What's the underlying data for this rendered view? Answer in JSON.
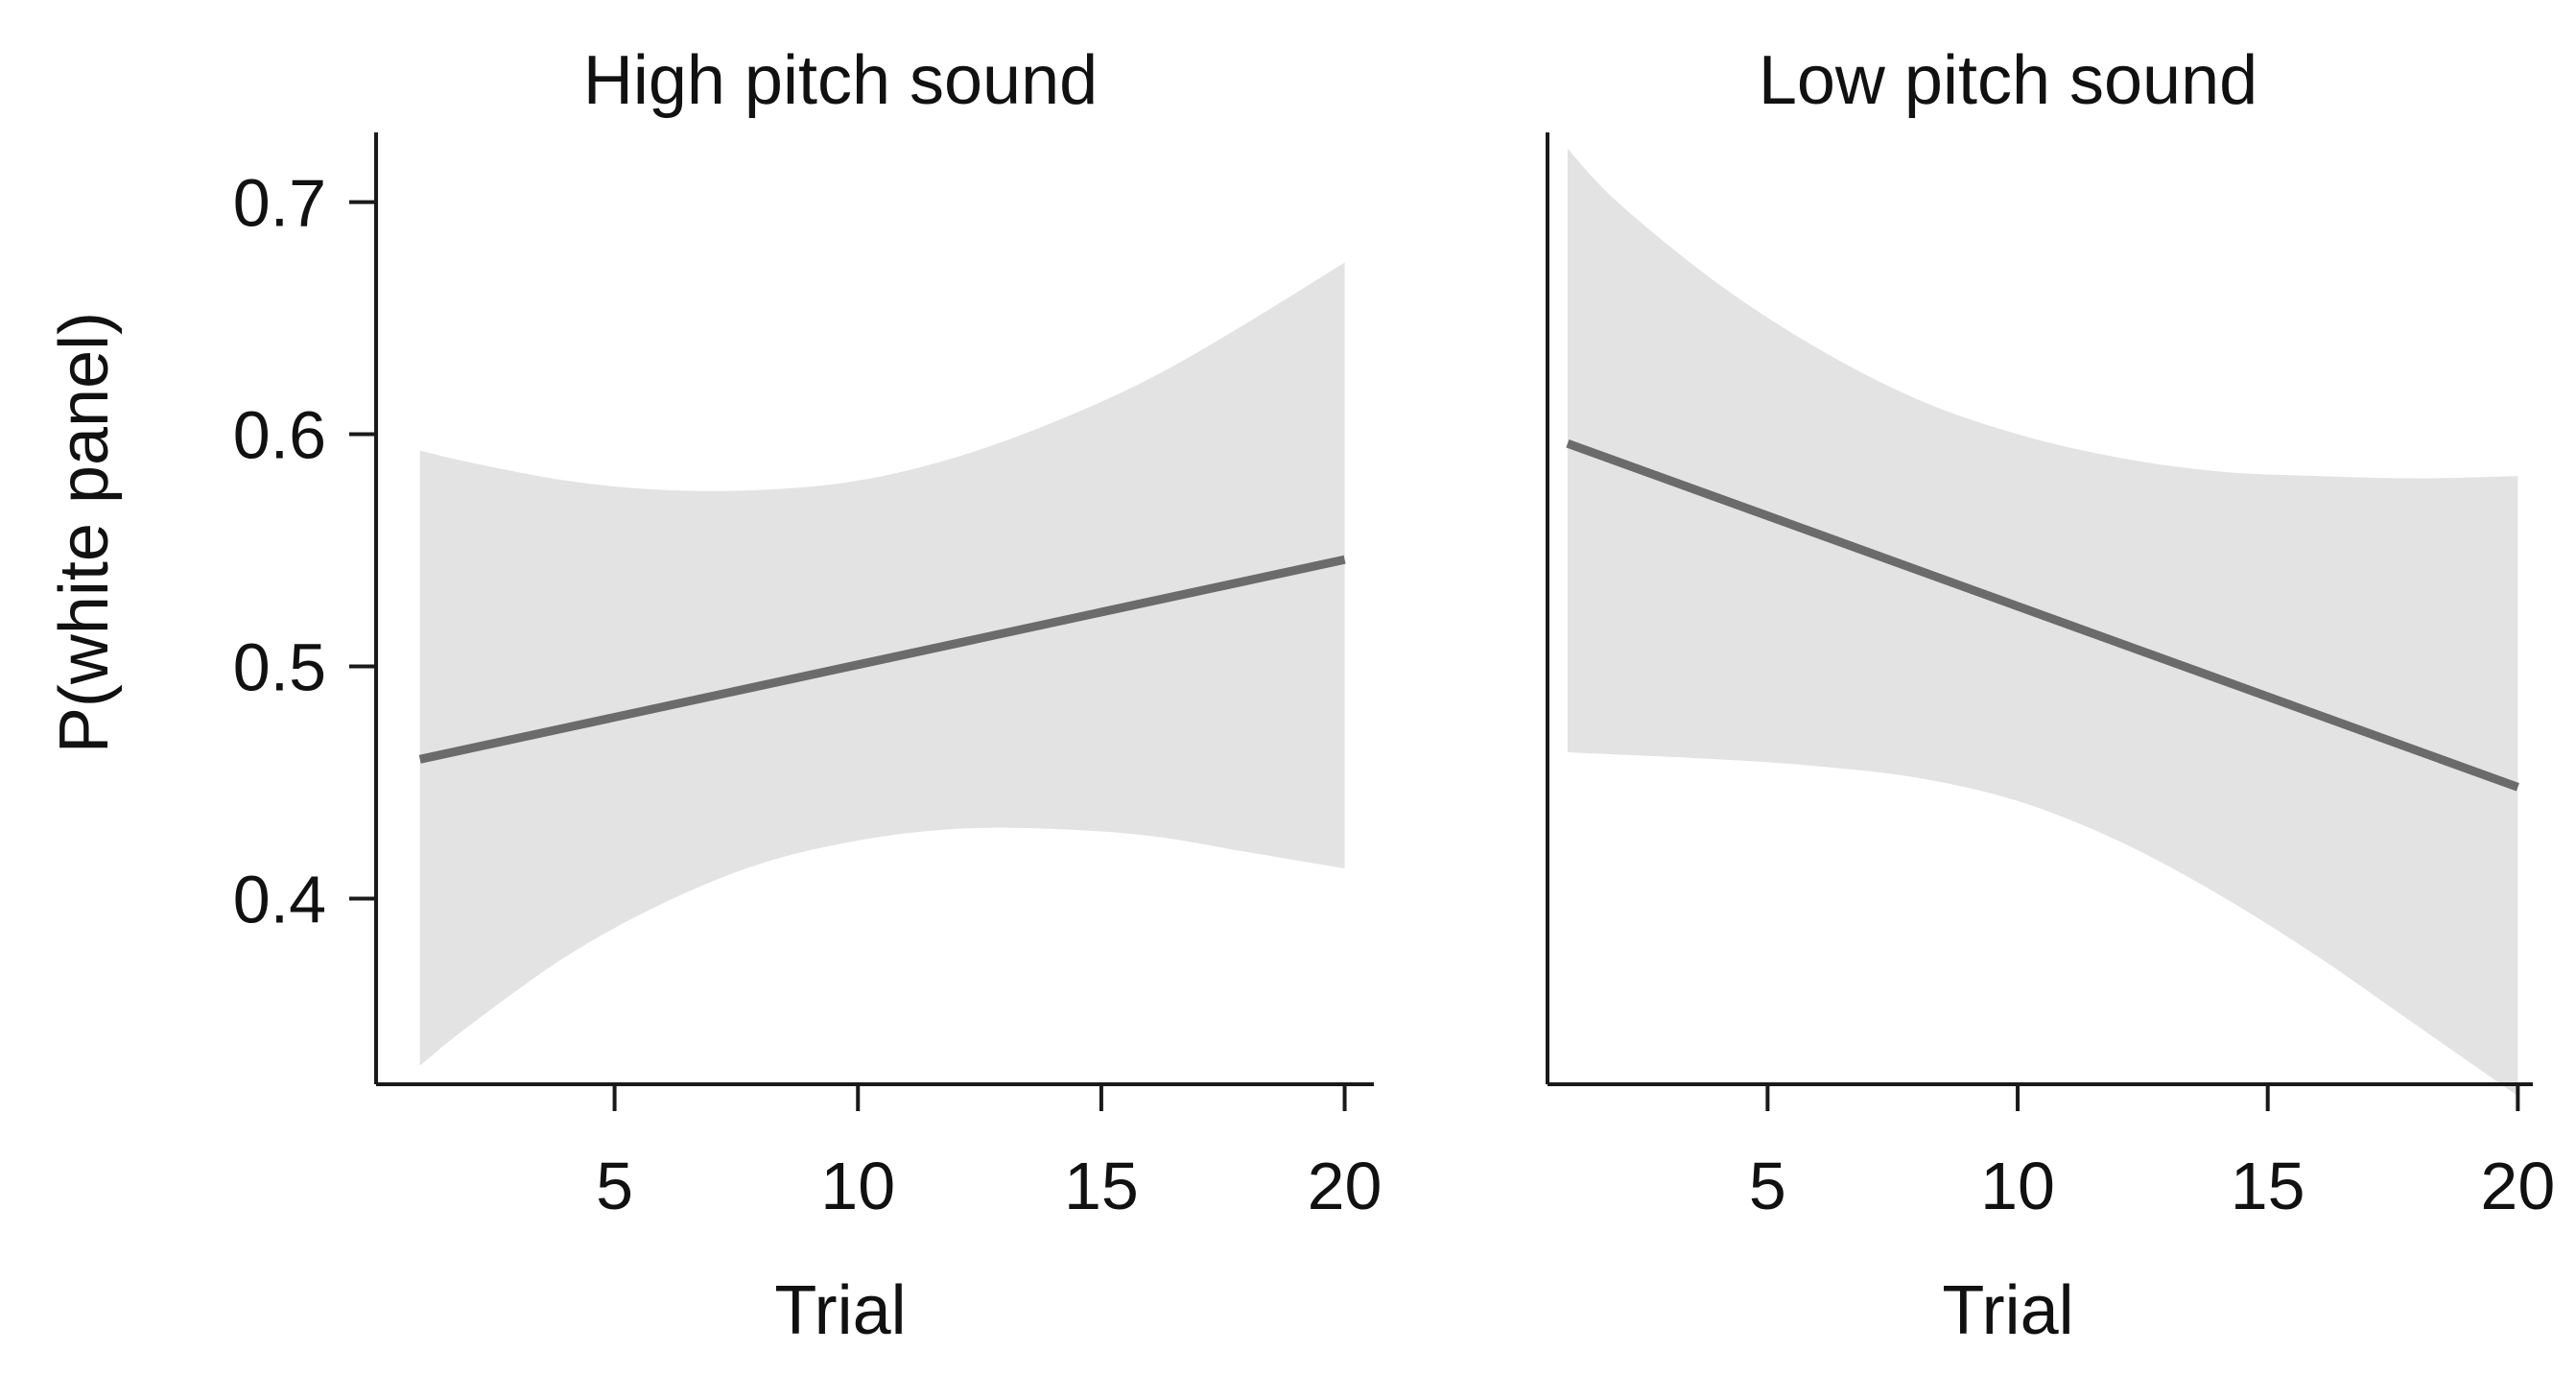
{
  "chart_data": [
    {
      "type": "line",
      "title": "High pitch sound",
      "xlabel": "Trial",
      "ylabel": "P(white panel)",
      "xlim": [
        0.1,
        20.6
      ],
      "ylim": [
        0.32,
        0.73
      ],
      "x_ticks": [
        5,
        10,
        15,
        20
      ],
      "x_tick_labels": [
        "5",
        "10",
        "15",
        "20"
      ],
      "y_ticks": [
        0.4,
        0.5,
        0.6,
        0.7
      ],
      "y_tick_labels": [
        "0.4",
        "0.5",
        "0.6",
        "0.7"
      ],
      "grid": false,
      "series": [
        {
          "name": "fit",
          "x": [
            1,
            20
          ],
          "y": [
            0.46,
            0.546
          ]
        }
      ],
      "ci_band": {
        "x": [
          1,
          2,
          4,
          6,
          8,
          10,
          12,
          14,
          16,
          18,
          20
        ],
        "lower": [
          0.328,
          0.345,
          0.375,
          0.398,
          0.415,
          0.425,
          0.43,
          0.43,
          0.427,
          0.42,
          0.413
        ],
        "upper": [
          0.593,
          0.588,
          0.58,
          0.576,
          0.576,
          0.58,
          0.59,
          0.605,
          0.624,
          0.648,
          0.674
        ]
      }
    },
    {
      "type": "line",
      "title": "Low pitch sound",
      "xlabel": "Trial",
      "ylabel": "",
      "xlim": [
        0.6,
        20.3
      ],
      "ylim": [
        0.32,
        0.73
      ],
      "x_ticks": [
        5,
        10,
        15,
        20
      ],
      "x_tick_labels": [
        "5",
        "10",
        "15",
        "20"
      ],
      "y_ticks": [],
      "y_tick_labels": [],
      "grid": false,
      "series": [
        {
          "name": "fit",
          "x": [
            1,
            20
          ],
          "y": [
            0.596,
            0.448
          ]
        }
      ],
      "ci_band": {
        "x": [
          1,
          2,
          4,
          6,
          8,
          10,
          12,
          14,
          16,
          18,
          20
        ],
        "lower": [
          0.463,
          0.462,
          0.46,
          0.457,
          0.452,
          0.442,
          0.425,
          0.402,
          0.375,
          0.345,
          0.315
        ],
        "upper": [
          0.723,
          0.7,
          0.665,
          0.637,
          0.615,
          0.6,
          0.59,
          0.584,
          0.582,
          0.581,
          0.582
        ]
      }
    }
  ],
  "colors": {
    "line": "#6b6b6b",
    "band": "#e3e3e3",
    "axis": "#1a1a1a"
  }
}
